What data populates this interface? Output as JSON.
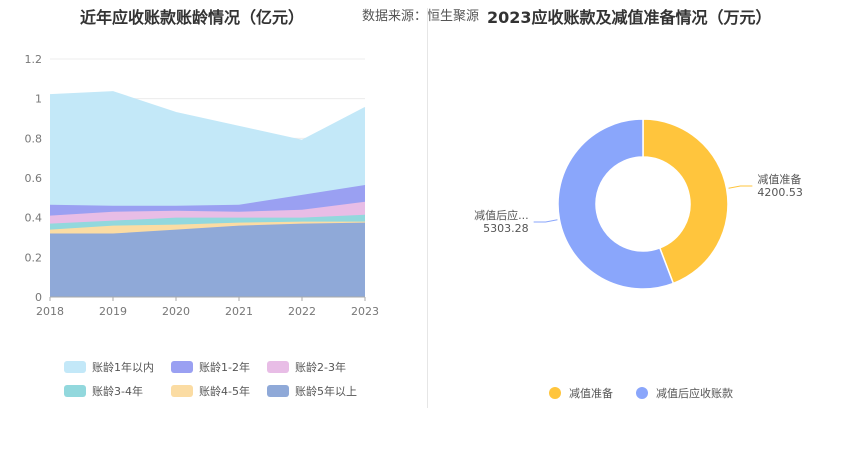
{
  "header": {
    "left_title": "近年应收账款账龄情况（亿元）",
    "source": "数据来源：恒生聚源",
    "right_title": "2023应收账款及减值准备情况（万元）"
  },
  "chart_data": [
    {
      "type": "area",
      "stacked": true,
      "title": "近年应收账款账龄情况（亿元）",
      "x": [
        "2018",
        "2019",
        "2020",
        "2021",
        "2022",
        "2023"
      ],
      "ylim": [
        0,
        1.2
      ],
      "yticks": [
        "0",
        "0.2",
        "0.4",
        "0.6",
        "0.8",
        "1",
        "1.2"
      ],
      "grid": true,
      "legend_position": "bottom",
      "series": [
        {
          "name": "账龄5年以上",
          "color": "#8fa9d8",
          "values": [
            0.32,
            0.32,
            0.34,
            0.36,
            0.37,
            0.375
          ]
        },
        {
          "name": "账龄4-5年",
          "color": "#fbdca3",
          "values": [
            0.02,
            0.04,
            0.025,
            0.015,
            0.01,
            0.005
          ]
        },
        {
          "name": "账龄3-4年",
          "color": "#92d8dd",
          "values": [
            0.03,
            0.025,
            0.035,
            0.025,
            0.02,
            0.035
          ]
        },
        {
          "name": "账龄2-3年",
          "color": "#e8bde6",
          "values": [
            0.04,
            0.045,
            0.035,
            0.03,
            0.04,
            0.065
          ]
        },
        {
          "name": "账龄1-2年",
          "color": "#9aa0f2",
          "values": [
            0.055,
            0.03,
            0.025,
            0.035,
            0.075,
            0.085
          ]
        },
        {
          "name": "账龄1年以内",
          "color": "#c3e8f8",
          "values": [
            0.555,
            0.575,
            0.47,
            0.395,
            0.275,
            0.39
          ]
        }
      ],
      "legend_order": [
        "账龄1年以内",
        "账龄1-2年",
        "账龄2-3年",
        "账龄3-4年",
        "账龄4-5年",
        "账龄5年以上"
      ]
    },
    {
      "type": "pie",
      "donut": true,
      "title": "2023应收账款及减值准备情况（万元）",
      "legend_position": "bottom",
      "slices": [
        {
          "name": "减值准备",
          "value": 4200.53,
          "color": "#ffc53d",
          "label_name": "减值准备",
          "label_value": "4200.53"
        },
        {
          "name": "减值后应收账款",
          "value": 5303.28,
          "color": "#8aa6fb",
          "label_name": "减值后应...",
          "label_value": "5303.28"
        }
      ]
    }
  ]
}
